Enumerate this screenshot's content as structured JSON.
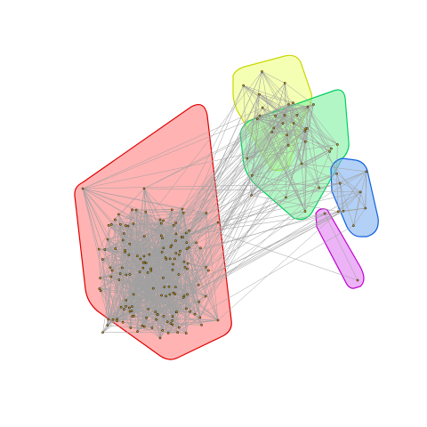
{
  "title": "",
  "colors": {
    "background": "#ffffff",
    "edge": "#a0a0a0",
    "node_fill": "#d4a017",
    "node_stroke": "#000000"
  },
  "communities": [
    {
      "name": "",
      "fill": "#ff8080",
      "stroke": "#e00000"
    },
    {
      "name": "",
      "fill": "#eeff80",
      "stroke": "#c8d800"
    },
    {
      "name": "",
      "fill": "#80f0a0",
      "stroke": "#00d060"
    },
    {
      "name": "",
      "fill": "#80b0f0",
      "stroke": "#1060e0"
    },
    {
      "name": "",
      "fill": "#e080f0",
      "stroke": "#c000d0"
    }
  ]
}
